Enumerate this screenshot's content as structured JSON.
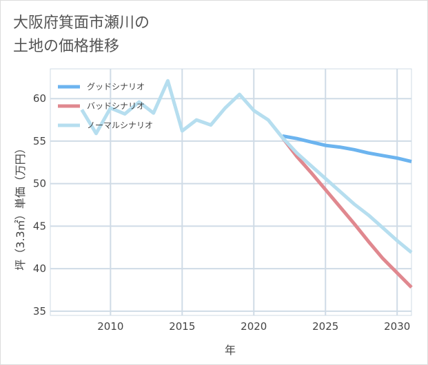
{
  "title_line1": "大阪府箕面市瀬川の",
  "title_line2": "土地の価格推移",
  "chart_data": {
    "type": "line",
    "xlabel": "年",
    "ylabel": "坪（3.3㎡）単価（万円）",
    "xlim": [
      2005.8,
      2031
    ],
    "ylim": [
      34.5,
      63.5
    ],
    "x_ticks": [
      2010,
      2015,
      2020,
      2025,
      2030
    ],
    "y_ticks": [
      35,
      40,
      45,
      50,
      55,
      60
    ],
    "grid": true,
    "legend_position": "top-left",
    "series": [
      {
        "name": "グッドシナリオ",
        "color": "#6cb4ef",
        "x": [
          2022,
          2023,
          2024,
          2025,
          2026,
          2027,
          2028,
          2029,
          2030,
          2031
        ],
        "values": [
          55.6,
          55.3,
          54.9,
          54.5,
          54.3,
          54.0,
          53.6,
          53.3,
          53.0,
          52.6
        ]
      },
      {
        "name": "バッドシナリオ",
        "color": "#e0888f",
        "x": [
          2022,
          2023,
          2024,
          2025,
          2026,
          2027,
          2028,
          2029,
          2030,
          2031
        ],
        "values": [
          55.4,
          53.2,
          51.3,
          49.3,
          47.3,
          45.3,
          43.2,
          41.2,
          39.5,
          37.8
        ]
      },
      {
        "name": "ノーマルシナリオ",
        "color": "#b6deef",
        "x": [
          2008,
          2009,
          2010,
          2011,
          2012,
          2013,
          2014,
          2015,
          2016,
          2017,
          2018,
          2019,
          2020,
          2021,
          2022,
          2023,
          2024,
          2025,
          2026,
          2027,
          2028,
          2029,
          2030,
          2031
        ],
        "values": [
          58.7,
          55.9,
          58.9,
          58.2,
          59.6,
          58.3,
          62.1,
          56.2,
          57.5,
          56.9,
          58.9,
          60.5,
          58.6,
          57.5,
          55.4,
          53.6,
          52.1,
          50.6,
          49.1,
          47.6,
          46.3,
          44.8,
          43.3,
          41.9
        ]
      }
    ]
  }
}
